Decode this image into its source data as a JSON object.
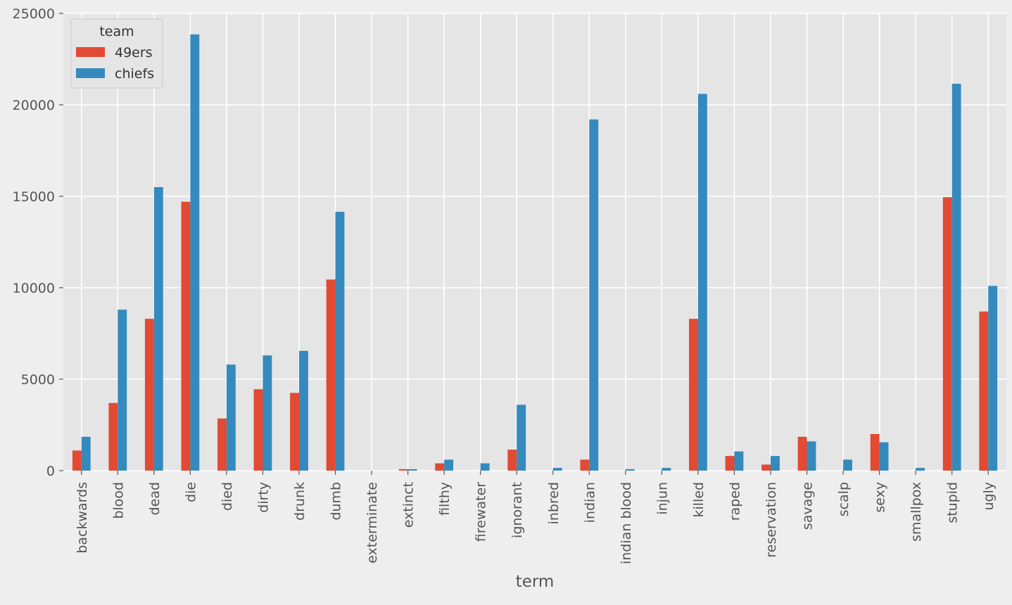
{
  "chart_data": {
    "type": "bar",
    "title": "",
    "xlabel": "term",
    "ylabel": "",
    "ylim": [
      0,
      25000
    ],
    "yticks": [
      0,
      5000,
      10000,
      15000,
      20000,
      25000
    ],
    "grid": true,
    "legend": {
      "title": "team",
      "placement": "top-left"
    },
    "categories": [
      "backwards",
      "blood",
      "dead",
      "die",
      "died",
      "dirty",
      "drunk",
      "dumb",
      "exterminate",
      "extinct",
      "filthy",
      "firewater",
      "ignorant",
      "inbred",
      "indian",
      "indian blood",
      "injun",
      "killed",
      "raped",
      "reservation",
      "savage",
      "scalp",
      "sexy",
      "smallpox",
      "stupid",
      "ugly"
    ],
    "series": [
      {
        "name": "49ers",
        "color": "#E24A33",
        "values": [
          1100,
          3700,
          8300,
          14700,
          2850,
          4450,
          4250,
          10450,
          0,
          80,
          400,
          0,
          1150,
          0,
          600,
          0,
          0,
          8300,
          800,
          330,
          1850,
          0,
          2000,
          0,
          14950,
          8700
        ]
      },
      {
        "name": "chiefs",
        "color": "#348ABD",
        "values": [
          1850,
          8800,
          15500,
          23850,
          5800,
          6300,
          6550,
          14150,
          0,
          80,
          600,
          400,
          3600,
          150,
          19200,
          80,
          150,
          20600,
          1050,
          800,
          1600,
          600,
          1550,
          150,
          21150,
          10100
        ]
      }
    ]
  }
}
